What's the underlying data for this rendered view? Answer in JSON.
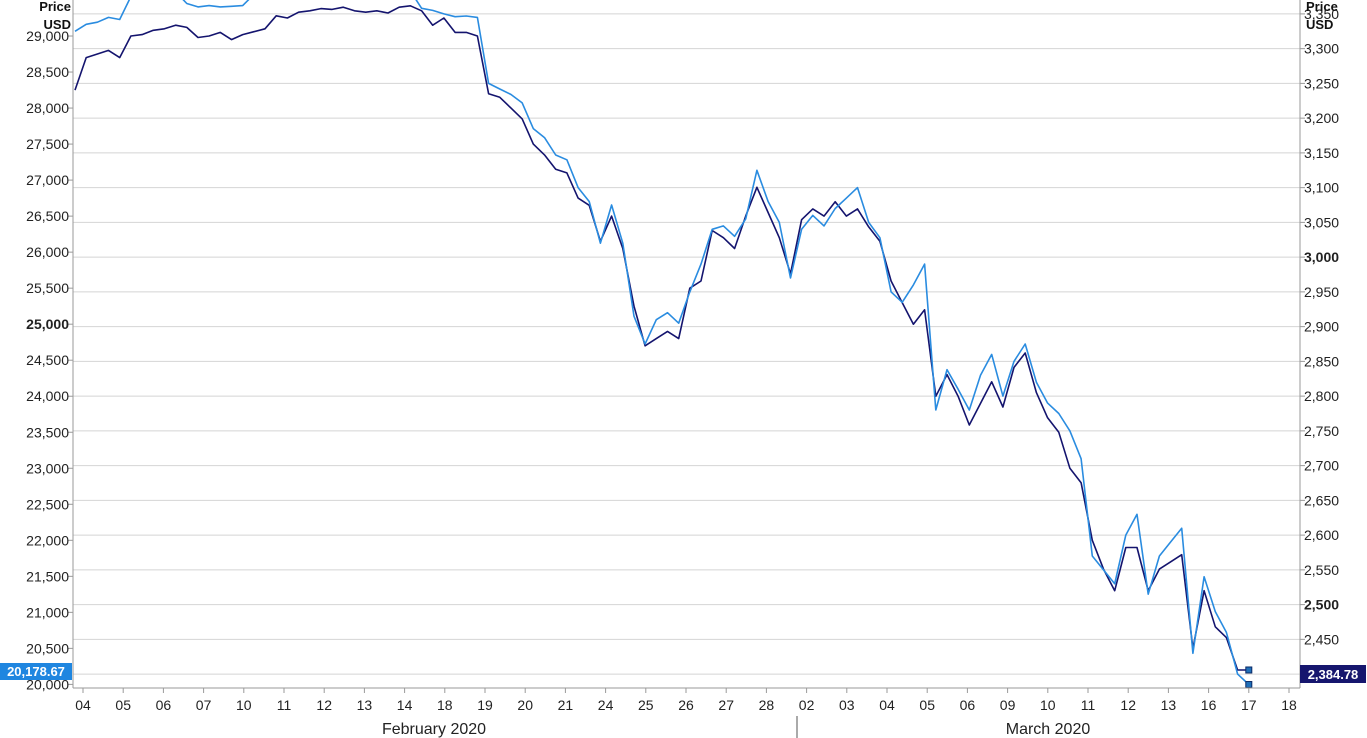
{
  "chart_data": {
    "type": "line",
    "left_axis": {
      "title": "Price",
      "unit": "USD",
      "ylim": [
        19950,
        29500
      ],
      "ticks": [
        "20,000",
        "20,500",
        "21,000",
        "21,500",
        "22,000",
        "22,500",
        "23,000",
        "23,500",
        "24,000",
        "24,500",
        "25,000",
        "25,500",
        "26,000",
        "26,500",
        "27,000",
        "27,500",
        "28,000",
        "28,500",
        "29,000"
      ],
      "bold_tick": "25,000"
    },
    "right_axis": {
      "title": "Price",
      "unit": "USD",
      "ylim": [
        2380,
        3370
      ],
      "ticks": [
        "2,400",
        "2,450",
        "2,500",
        "2,550",
        "2,600",
        "2,650",
        "2,700",
        "2,750",
        "2,800",
        "2,850",
        "2,900",
        "2,950",
        "3,000",
        "3,050",
        "3,100",
        "3,150",
        "3,200",
        "3,250",
        "3,300",
        "3,350"
      ],
      "bold_ticks": [
        "2,500",
        "3,000"
      ]
    },
    "x_ticks": [
      "04",
      "05",
      "06",
      "07",
      "10",
      "11",
      "12",
      "13",
      "14",
      "18",
      "19",
      "20",
      "21",
      "24",
      "25",
      "26",
      "27",
      "28",
      "02",
      "03",
      "04",
      "05",
      "06",
      "09",
      "10",
      "11",
      "12",
      "13",
      "16",
      "17",
      "18"
    ],
    "months": [
      "February 2020",
      "March 2020"
    ],
    "grid": true,
    "series": [
      {
        "axis": "left",
        "color": "#14146e",
        "last_value": "20,178.67",
        "values": [
          28250,
          28700,
          28750,
          28800,
          28700,
          29000,
          29020,
          29080,
          29100,
          29150,
          29120,
          28980,
          29000,
          29050,
          28950,
          29020,
          29060,
          29100,
          29280,
          29250,
          29330,
          29350,
          29380,
          29370,
          29400,
          29350,
          29330,
          29350,
          29320,
          29400,
          29420,
          29350,
          29150,
          29250,
          29050,
          29050,
          29000,
          28200,
          28150,
          28000,
          27850,
          27500,
          27350,
          27150,
          27100,
          26750,
          26650,
          26150,
          26500,
          26050,
          25250,
          24700,
          24800,
          24900,
          24800,
          25500,
          25600,
          26300,
          26200,
          26050,
          26500,
          26900,
          26550,
          26200,
          25700,
          26450,
          26600,
          26500,
          26700,
          26500,
          26600,
          26350,
          26150,
          25600,
          25300,
          25000,
          25200,
          24000,
          24300,
          24000,
          23600,
          23900,
          24200,
          23850,
          24400,
          24600,
          24050,
          23700,
          23500,
          23000,
          22800,
          22000,
          21600,
          21300,
          21900,
          21900,
          21300,
          21600,
          21700,
          21800,
          20500,
          21300,
          20800,
          20650,
          20200,
          20200
        ]
      },
      {
        "axis": "right",
        "color": "#2a8ce0",
        "last_value": "2,384.78",
        "values": [
          3325,
          3335,
          3338,
          3345,
          3342,
          3375,
          3380,
          3378,
          3385,
          3382,
          3365,
          3360,
          3362,
          3360,
          3361,
          3362,
          3378,
          3382,
          3385,
          3390,
          3395,
          3390,
          3392,
          3395,
          3393,
          3385,
          3376,
          3378,
          3384,
          3386,
          3383,
          3358,
          3355,
          3350,
          3346,
          3347,
          3345,
          3250,
          3242,
          3234,
          3222,
          3185,
          3172,
          3147,
          3140,
          3100,
          3080,
          3020,
          3075,
          3020,
          2915,
          2875,
          2910,
          2920,
          2905,
          2950,
          2990,
          3040,
          3045,
          3030,
          3055,
          3125,
          3080,
          3050,
          2970,
          3040,
          3060,
          3045,
          3070,
          3085,
          3100,
          3050,
          3028,
          2950,
          2935,
          2960,
          2990,
          2780,
          2838,
          2810,
          2780,
          2830,
          2860,
          2800,
          2850,
          2875,
          2820,
          2790,
          2775,
          2750,
          2710,
          2570,
          2550,
          2530,
          2600,
          2630,
          2515,
          2570,
          2590,
          2610,
          2430,
          2540,
          2490,
          2460,
          2400,
          2385
        ]
      }
    ]
  }
}
